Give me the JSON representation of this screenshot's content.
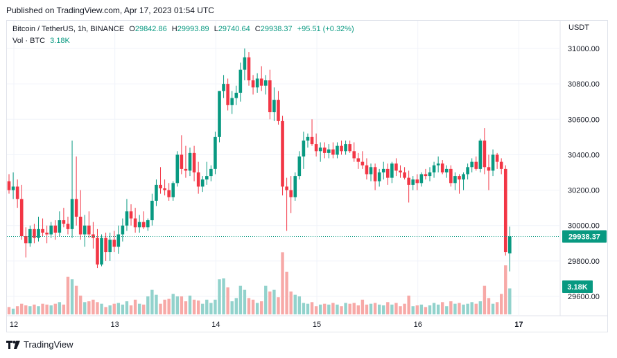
{
  "header": {
    "published": "Published on TradingView.com, Apr 17, 2023 01:54 UTC"
  },
  "legend": {
    "symbol": "Bitcoin / TetherUS, 1h, BINANCE",
    "o_label": "O",
    "o": "29842.86",
    "h_label": "H",
    "h": "29993.89",
    "l_label": "L",
    "l": "29740.64",
    "c_label": "C",
    "c": "29938.37",
    "change": "+95.51 (+0.32%)",
    "vol_label": "Vol · BTC",
    "vol_value": "3.18K"
  },
  "currency_label": "USDT",
  "footer": {
    "brand": "TradingView"
  },
  "colors": {
    "up": "#089981",
    "down": "#f23645",
    "vol_up": "#92d2cc",
    "vol_down": "#f7a9a7",
    "grid": "#f0f3fa"
  },
  "chart_data": {
    "type": "candlestick",
    "y_ticks": [
      "29600.00",
      "29800.00",
      "30000.00",
      "30200.00",
      "30400.00",
      "30600.00",
      "30800.00",
      "31000.00"
    ],
    "ylim": [
      29500,
      31080
    ],
    "x_ticks": [
      "12",
      "13",
      "14",
      "15",
      "16",
      "17"
    ],
    "x_tick_index": [
      0,
      24,
      48,
      72,
      96,
      120
    ],
    "last_price": "29938.37",
    "last_volume": "3.18K",
    "candles": [
      [
        30250,
        30290,
        30180,
        30200,
        0.9
      ],
      [
        30200,
        30300,
        30150,
        30220,
        0.7
      ],
      [
        30220,
        30260,
        30100,
        30150,
        1.0
      ],
      [
        30150,
        30230,
        29920,
        29940,
        1.3
      ],
      [
        29940,
        29990,
        29820,
        29900,
        1.1
      ],
      [
        29900,
        30000,
        29880,
        29980,
        1.0
      ],
      [
        29980,
        30010,
        29900,
        29930,
        1.2
      ],
      [
        29930,
        30050,
        29910,
        29980,
        1.0
      ],
      [
        29980,
        30040,
        29940,
        29960,
        1.3
      ],
      [
        29960,
        30000,
        29900,
        29950,
        1.2
      ],
      [
        29950,
        30020,
        29930,
        30000,
        1.1
      ],
      [
        30000,
        30030,
        29920,
        29960,
        1.3
      ],
      [
        29960,
        30080,
        29940,
        30030,
        1.5
      ],
      [
        30030,
        30100,
        29990,
        30010,
        1.2
      ],
      [
        30010,
        30050,
        29950,
        29980,
        4.6
      ],
      [
        29980,
        30480,
        29930,
        30150,
        4.3
      ],
      [
        30150,
        30390,
        30000,
        30050,
        3.5
      ],
      [
        30050,
        30200,
        29920,
        29950,
        2.3
      ],
      [
        29950,
        30060,
        29880,
        30000,
        1.5
      ],
      [
        30000,
        30080,
        29930,
        29950,
        1.6
      ],
      [
        29950,
        30020,
        29870,
        29930,
        1.8
      ],
      [
        29930,
        29980,
        29760,
        29780,
        1.5
      ],
      [
        29780,
        29950,
        29770,
        29930,
        1.3
      ],
      [
        29930,
        29960,
        29800,
        29850,
        0.9
      ],
      [
        29850,
        29960,
        29800,
        29920,
        1.1
      ],
      [
        29920,
        29970,
        29850,
        29880,
        1.3
      ],
      [
        29880,
        30000,
        29840,
        29950,
        1.4
      ],
      [
        29950,
        30040,
        29910,
        30000,
        1.2
      ],
      [
        30000,
        30150,
        29970,
        30080,
        1.6
      ],
      [
        30080,
        30120,
        30000,
        30040,
        1.1
      ],
      [
        30040,
        30100,
        29960,
        29990,
        1.8
      ],
      [
        29990,
        30060,
        29960,
        30020,
        1.3
      ],
      [
        30020,
        30080,
        29980,
        29990,
        1.2
      ],
      [
        29990,
        30040,
        29970,
        30030,
        2.2
      ],
      [
        30030,
        30180,
        30000,
        30140,
        3.0
      ],
      [
        30140,
        30260,
        30110,
        30230,
        2.4
      ],
      [
        30230,
        30330,
        30180,
        30210,
        1.3
      ],
      [
        30210,
        30260,
        30170,
        30200,
        1.8
      ],
      [
        30200,
        30240,
        30140,
        30160,
        1.9
      ],
      [
        30160,
        30250,
        30140,
        30240,
        2.5
      ],
      [
        30240,
        30420,
        30220,
        30400,
        2.2
      ],
      [
        30400,
        30510,
        30290,
        30320,
        2.2
      ],
      [
        30320,
        30450,
        30270,
        30310,
        1.6
      ],
      [
        30310,
        30440,
        30280,
        30410,
        2.3
      ],
      [
        30410,
        30450,
        30250,
        30300,
        1.8
      ],
      [
        30300,
        30360,
        30180,
        30220,
        1.7
      ],
      [
        30220,
        30280,
        30190,
        30260,
        1.3
      ],
      [
        30260,
        30360,
        30230,
        30280,
        1.8
      ],
      [
        30280,
        30340,
        30250,
        30320,
        1.4
      ],
      [
        30320,
        30530,
        30290,
        30500,
        1.8
      ],
      [
        30500,
        30760,
        30470,
        30760,
        4.3
      ],
      [
        30760,
        30850,
        30720,
        30800,
        4.4
      ],
      [
        30800,
        30830,
        30650,
        30680,
        3.3
      ],
      [
        30680,
        30760,
        30630,
        30720,
        1.6
      ],
      [
        30720,
        30790,
        30680,
        30750,
        2.0
      ],
      [
        30750,
        30920,
        30700,
        30880,
        3.5
      ],
      [
        30880,
        31000,
        30820,
        30950,
        3.0
      ],
      [
        30950,
        30980,
        30790,
        30820,
        2.0
      ],
      [
        30820,
        30850,
        30740,
        30780,
        1.8
      ],
      [
        30780,
        30860,
        30750,
        30830,
        1.4
      ],
      [
        30830,
        30900,
        30760,
        30790,
        1.6
      ],
      [
        30790,
        30850,
        30740,
        30820,
        3.5
      ],
      [
        30820,
        30880,
        30600,
        30640,
        2.8
      ],
      [
        30640,
        30780,
        30590,
        30710,
        3.0
      ],
      [
        30710,
        30760,
        30570,
        30590,
        2.1
      ],
      [
        30590,
        30620,
        30170,
        30220,
        7.6
      ],
      [
        30220,
        30270,
        29970,
        30200,
        5.2
      ],
      [
        30200,
        30280,
        30070,
        30160,
        2.8
      ],
      [
        30160,
        30300,
        30140,
        30280,
        2.4
      ],
      [
        30280,
        30420,
        30260,
        30390,
        2.2
      ],
      [
        30390,
        30530,
        30320,
        30480,
        1.4
      ],
      [
        30480,
        30520,
        30440,
        30500,
        1.3
      ],
      [
        30500,
        30600,
        30450,
        30460,
        1.5
      ],
      [
        30460,
        30520,
        30390,
        30420,
        1.0
      ],
      [
        30420,
        30470,
        30360,
        30440,
        1.2
      ],
      [
        30440,
        30470,
        30380,
        30410,
        1.3
      ],
      [
        30410,
        30460,
        30380,
        30430,
        1.2
      ],
      [
        30430,
        30470,
        30380,
        30400,
        1.4
      ],
      [
        30400,
        30470,
        30380,
        30450,
        1.2
      ],
      [
        30450,
        30480,
        30400,
        30420,
        1.0
      ],
      [
        30420,
        30480,
        30400,
        30460,
        1.4
      ],
      [
        30460,
        30480,
        30410,
        30420,
        1.3
      ],
      [
        30420,
        30470,
        30360,
        30380,
        1.4
      ],
      [
        30380,
        30410,
        30320,
        30360,
        1.1
      ],
      [
        30360,
        30420,
        30320,
        30340,
        1.8
      ],
      [
        30340,
        30380,
        30260,
        30290,
        1.2
      ],
      [
        30290,
        30350,
        30250,
        30330,
        1.3
      ],
      [
        30330,
        30350,
        30200,
        30250,
        1.4
      ],
      [
        30250,
        30320,
        30220,
        30300,
        1.2
      ],
      [
        30300,
        30360,
        30260,
        30320,
        1.1
      ],
      [
        30320,
        30350,
        30230,
        30270,
        1.5
      ],
      [
        30270,
        30360,
        30240,
        30350,
        1.2
      ],
      [
        30350,
        30380,
        30280,
        30310,
        1.4
      ],
      [
        30310,
        30340,
        30270,
        30300,
        1.0
      ],
      [
        30300,
        30330,
        30260,
        30270,
        1.3
      ],
      [
        30270,
        30310,
        30130,
        30230,
        2.3
      ],
      [
        30230,
        30280,
        30200,
        30260,
        1.0
      ],
      [
        30260,
        30290,
        30200,
        30240,
        1.1
      ],
      [
        30240,
        30300,
        30220,
        30290,
        1.2
      ],
      [
        30290,
        30320,
        30260,
        30280,
        0.9
      ],
      [
        30280,
        30330,
        30250,
        30300,
        1.1
      ],
      [
        30300,
        30360,
        30270,
        30340,
        1.4
      ],
      [
        30340,
        30390,
        30300,
        30350,
        1.2
      ],
      [
        30350,
        30370,
        30290,
        30300,
        1.5
      ],
      [
        30300,
        30340,
        30270,
        30320,
        1.0
      ],
      [
        30320,
        30340,
        30220,
        30240,
        1.6
      ],
      [
        30240,
        30300,
        30200,
        30280,
        1.3
      ],
      [
        30280,
        30290,
        30180,
        30260,
        1.4
      ],
      [
        30260,
        30300,
        30200,
        30290,
        1.2
      ],
      [
        30290,
        30350,
        30260,
        30330,
        1.3
      ],
      [
        30330,
        30380,
        30300,
        30360,
        1.5
      ],
      [
        30360,
        30390,
        30310,
        30320,
        1.3
      ],
      [
        30320,
        30490,
        30300,
        30480,
        1.6
      ],
      [
        30480,
        30550,
        30290,
        30330,
        3.5
      ],
      [
        30330,
        30400,
        30200,
        30310,
        2.0
      ],
      [
        30310,
        30430,
        30280,
        30400,
        1.3
      ],
      [
        30400,
        30410,
        30320,
        30360,
        1.5
      ],
      [
        30360,
        30380,
        30290,
        30320,
        2.5
      ],
      [
        30320,
        30340,
        29830,
        29850,
        6.0
      ],
      [
        29842.86,
        29993.89,
        29740.64,
        29938.37,
        3.18
      ]
    ]
  }
}
